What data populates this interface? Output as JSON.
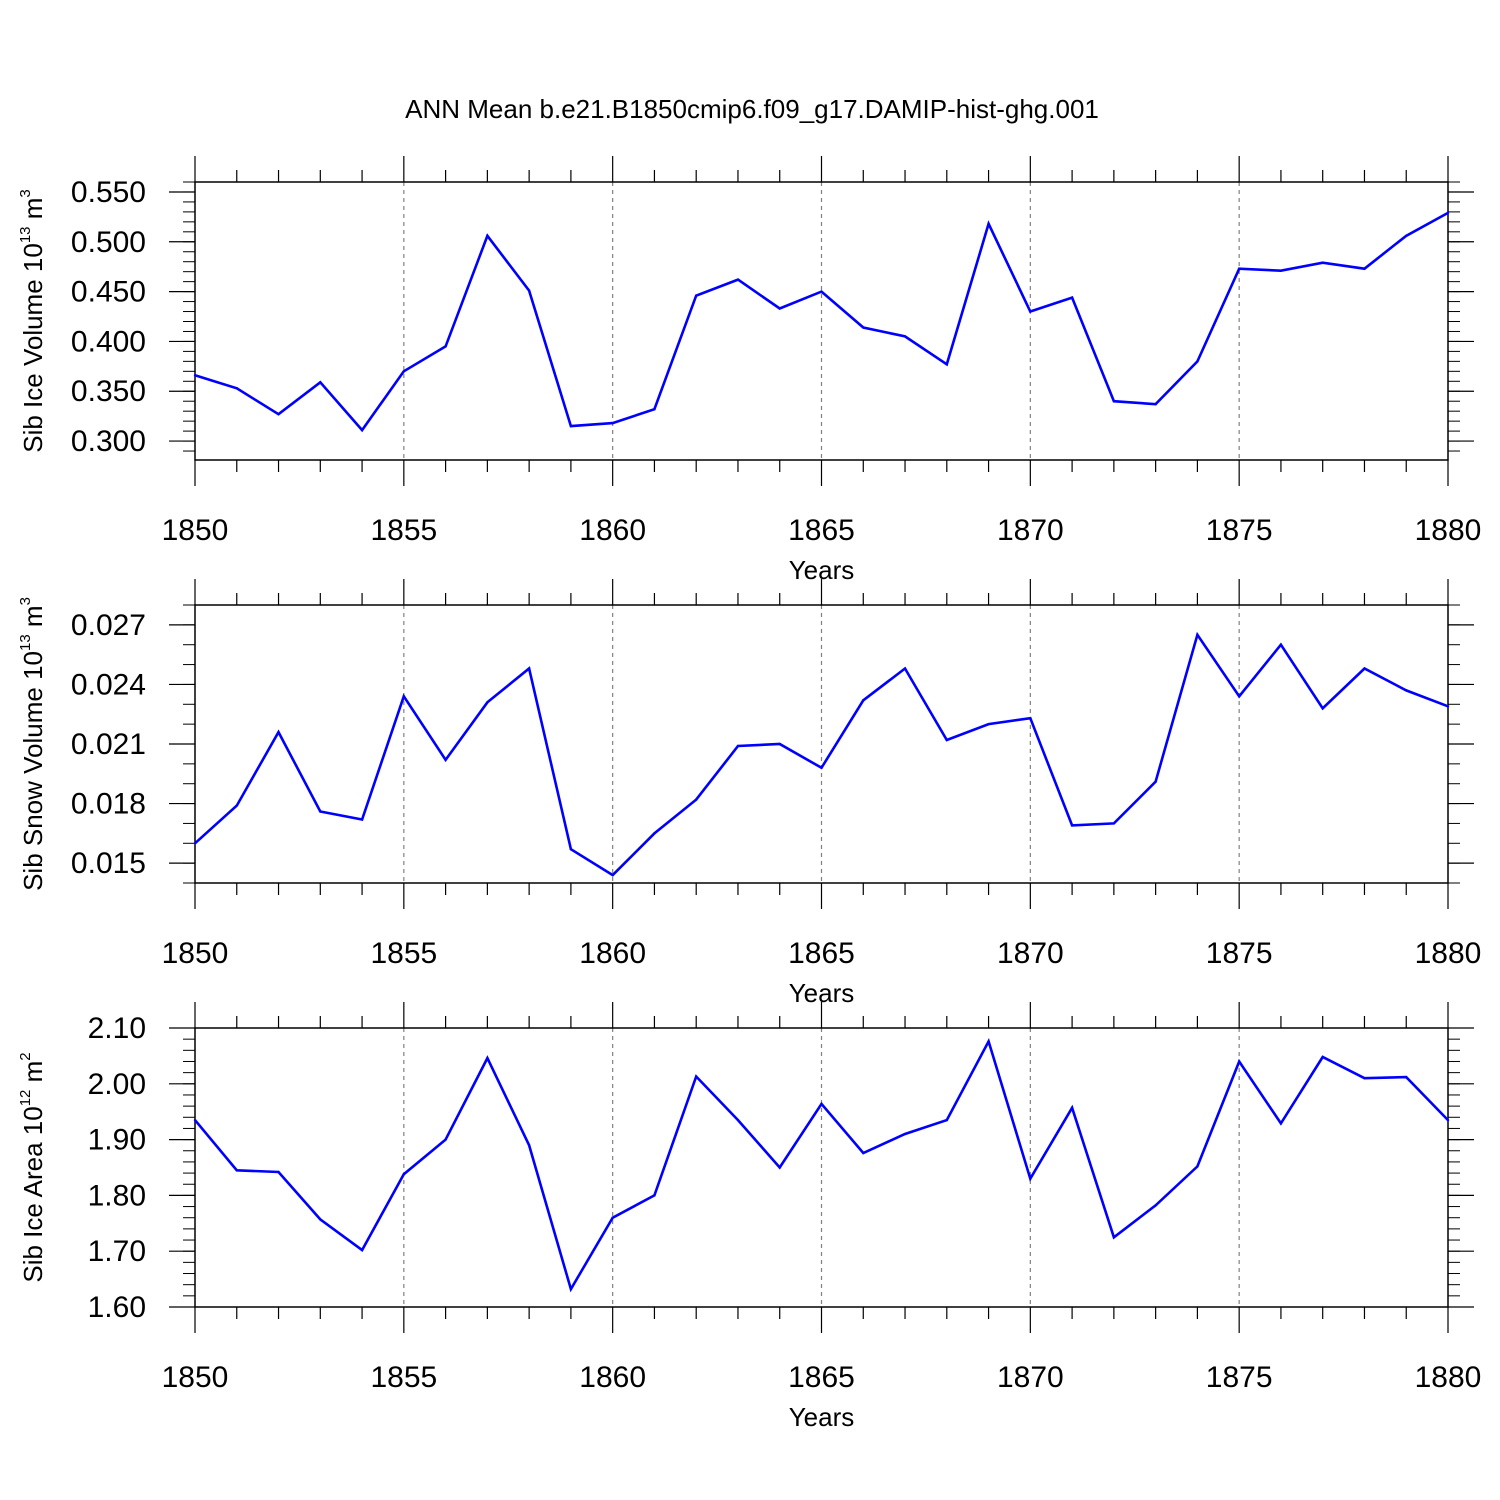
{
  "title": "ANN Mean b.e21.B1850cmip6.f09_g17.DAMIP-hist-ghg.001",
  "colors": {
    "line": "#0000ff",
    "axis": "#000000",
    "grid": "#808080"
  },
  "chart_data": [
    {
      "type": "line",
      "ylabel": "Sib Ice Volume 10",
      "ylabel_exp": "13",
      "ylabel_unit": " m",
      "ylabel_unit_exp": "3",
      "xlabel": "Years",
      "xlim": [
        1850,
        1880
      ],
      "ylim": [
        0.281,
        0.56
      ],
      "yticks": [
        0.3,
        0.35,
        0.4,
        0.45,
        0.5,
        0.55
      ],
      "ytick_labels": [
        "0.300",
        "0.350",
        "0.400",
        "0.450",
        "0.500",
        "0.550"
      ],
      "yminor": 0.01,
      "xticks": [
        1850,
        1855,
        1860,
        1865,
        1870,
        1875,
        1880
      ],
      "xtick_labels": [
        "1850",
        "1855",
        "1860",
        "1865",
        "1870",
        "1875",
        "1880"
      ],
      "x": [
        1850,
        1851,
        1852,
        1853,
        1854,
        1855,
        1856,
        1857,
        1858,
        1859,
        1860,
        1861,
        1862,
        1863,
        1864,
        1865,
        1866,
        1867,
        1868,
        1869,
        1870,
        1871,
        1872,
        1873,
        1874,
        1875,
        1876,
        1877,
        1878,
        1879,
        1880
      ],
      "series": [
        {
          "values": [
            0.366,
            0.353,
            0.327,
            0.359,
            0.311,
            0.37,
            0.395,
            0.506,
            0.451,
            0.315,
            0.318,
            0.332,
            0.446,
            0.462,
            0.433,
            0.45,
            0.414,
            0.405,
            0.377,
            0.518,
            0.43,
            0.444,
            0.34,
            0.337,
            0.38,
            0.473,
            0.471,
            0.479,
            0.473,
            0.506,
            0.529
          ]
        }
      ]
    },
    {
      "type": "line",
      "ylabel": "Sib Snow Volume 10",
      "ylabel_exp": "13",
      "ylabel_unit": " m",
      "ylabel_unit_exp": "3",
      "xlabel": "Years",
      "xlim": [
        1850,
        1880
      ],
      "ylim": [
        0.014,
        0.028
      ],
      "yticks": [
        0.015,
        0.018,
        0.021,
        0.024,
        0.027
      ],
      "ytick_labels": [
        "0.015",
        "0.018",
        "0.021",
        "0.024",
        "0.027"
      ],
      "yminor": 0.001,
      "xticks": [
        1850,
        1855,
        1860,
        1865,
        1870,
        1875,
        1880
      ],
      "xtick_labels": [
        "1850",
        "1855",
        "1860",
        "1865",
        "1870",
        "1875",
        "1880"
      ],
      "x": [
        1850,
        1851,
        1852,
        1853,
        1854,
        1855,
        1856,
        1857,
        1858,
        1859,
        1860,
        1861,
        1862,
        1863,
        1864,
        1865,
        1866,
        1867,
        1868,
        1869,
        1870,
        1871,
        1872,
        1873,
        1874,
        1875,
        1876,
        1877,
        1878,
        1879,
        1880
      ],
      "series": [
        {
          "values": [
            0.016,
            0.0179,
            0.0216,
            0.0176,
            0.0172,
            0.0234,
            0.0202,
            0.0231,
            0.0248,
            0.0157,
            0.0144,
            0.0165,
            0.0182,
            0.0209,
            0.021,
            0.0198,
            0.0232,
            0.0248,
            0.0212,
            0.022,
            0.0223,
            0.0169,
            0.017,
            0.0191,
            0.0265,
            0.0234,
            0.026,
            0.0228,
            0.0248,
            0.0237,
            0.0229
          ]
        }
      ]
    },
    {
      "type": "line",
      "ylabel": "Sib Ice Area 10",
      "ylabel_exp": "12",
      "ylabel_unit": " m",
      "ylabel_unit_exp": "2",
      "xlabel": "Years",
      "xlim": [
        1850,
        1880
      ],
      "ylim": [
        1.6,
        2.1
      ],
      "yticks": [
        1.6,
        1.7,
        1.8,
        1.9,
        2.0,
        2.1
      ],
      "ytick_labels": [
        "1.60",
        "1.70",
        "1.80",
        "1.90",
        "2.00",
        "2.10"
      ],
      "yminor": 0.02,
      "xticks": [
        1850,
        1855,
        1860,
        1865,
        1870,
        1875,
        1880
      ],
      "xtick_labels": [
        "1850",
        "1855",
        "1860",
        "1865",
        "1870",
        "1875",
        "1880"
      ],
      "x": [
        1850,
        1851,
        1852,
        1853,
        1854,
        1855,
        1856,
        1857,
        1858,
        1859,
        1860,
        1861,
        1862,
        1863,
        1864,
        1865,
        1866,
        1867,
        1868,
        1869,
        1870,
        1871,
        1872,
        1873,
        1874,
        1875,
        1876,
        1877,
        1878,
        1879,
        1880
      ],
      "series": [
        {
          "values": [
            1.935,
            1.845,
            1.842,
            1.757,
            1.702,
            1.838,
            1.9,
            2.046,
            1.89,
            1.632,
            1.76,
            1.8,
            2.013,
            1.935,
            1.85,
            1.964,
            1.876,
            1.91,
            1.935,
            2.076,
            1.83,
            1.957,
            1.725,
            1.782,
            1.852,
            2.04,
            1.929,
            2.048,
            2.01,
            2.012,
            1.935
          ]
        }
      ]
    }
  ]
}
